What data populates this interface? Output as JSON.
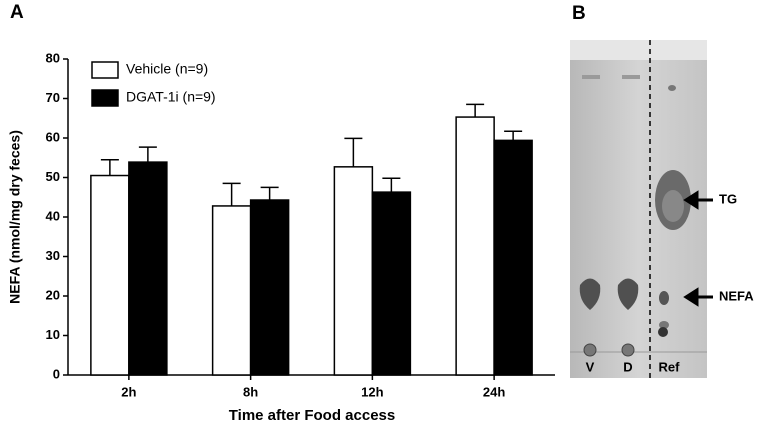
{
  "chart_data": {
    "type": "bar",
    "panel_label": "A",
    "x_label": "Time after Food access",
    "y_label": "NEFA  (nmol/mg dry feces)",
    "categories": [
      "2h",
      "8h",
      "12h",
      "24h"
    ],
    "series": [
      {
        "name": "Vehicle (n=9)",
        "color": "#ffffff",
        "values": [
          50.5,
          42.8,
          52.7,
          65.3
        ],
        "errors": [
          4.0,
          5.7,
          7.2,
          3.2
        ]
      },
      {
        "name": "DGAT-1i (n=9)",
        "color": "#000000",
        "values": [
          53.9,
          44.3,
          46.3,
          59.4
        ],
        "errors": [
          3.8,
          3.2,
          3.5,
          2.3
        ]
      }
    ],
    "ylim": [
      0,
      80
    ],
    "yticks": [
      0,
      10,
      20,
      30,
      40,
      50,
      60,
      70,
      80
    ],
    "legend": "upper-left"
  },
  "panel_b": {
    "panel_label": "B",
    "band_labels": [
      "TG",
      "NEFA"
    ],
    "lane_labels": [
      "V",
      "D",
      "Ref"
    ]
  }
}
